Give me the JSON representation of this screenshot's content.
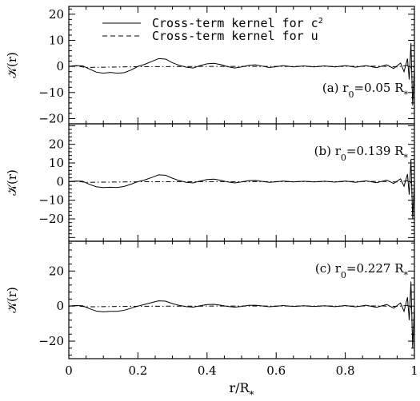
{
  "chart_data": [
    {
      "type": "line",
      "panel": "a",
      "annotation": "(a) r",
      "annotation_sub": "0",
      "annotation_rest": "=0.05 R",
      "annotation_star": "*",
      "ylabel": "𝒦(r)",
      "xlim": [
        0,
        1
      ],
      "ylim": [
        -22,
        23
      ],
      "yticks": [
        -20,
        -10,
        0,
        10,
        20
      ],
      "legend": [
        {
          "label": "Cross-term kernel for c",
          "sup": "2",
          "style": "solid"
        },
        {
          "label": "Cross-term kernel for u",
          "sup": "",
          "style": "dashed"
        }
      ],
      "legend_position": "top-left",
      "series": [
        {
          "style": "solid",
          "points": [
            [
              0.0,
              0
            ],
            [
              0.02,
              0.3
            ],
            [
              0.04,
              0.2
            ],
            [
              0.06,
              -1
            ],
            [
              0.08,
              -2.2
            ],
            [
              0.1,
              -2.6
            ],
            [
              0.12,
              -2.3
            ],
            [
              0.14,
              -2.6
            ],
            [
              0.16,
              -2.4
            ],
            [
              0.18,
              -1.4
            ],
            [
              0.2,
              0
            ],
            [
              0.22,
              0.8
            ],
            [
              0.24,
              1.9
            ],
            [
              0.26,
              3.0
            ],
            [
              0.28,
              2.8
            ],
            [
              0.3,
              1.4
            ],
            [
              0.32,
              0.4
            ],
            [
              0.34,
              -0.3
            ],
            [
              0.36,
              -0.6
            ],
            [
              0.38,
              0.3
            ],
            [
              0.4,
              1.0
            ],
            [
              0.42,
              1.2
            ],
            [
              0.44,
              0.7
            ],
            [
              0.46,
              -0.1
            ],
            [
              0.48,
              -0.6
            ],
            [
              0.5,
              -0.2
            ],
            [
              0.52,
              0.4
            ],
            [
              0.54,
              0.6
            ],
            [
              0.56,
              0.1
            ],
            [
              0.58,
              -0.4
            ],
            [
              0.6,
              -0.1
            ],
            [
              0.62,
              0.3
            ],
            [
              0.65,
              -0.2
            ],
            [
              0.68,
              0.2
            ],
            [
              0.71,
              -0.2
            ],
            [
              0.74,
              0.2
            ],
            [
              0.77,
              -0.2
            ],
            [
              0.8,
              0.3
            ],
            [
              0.83,
              -0.3
            ],
            [
              0.86,
              0.3
            ],
            [
              0.89,
              -0.5
            ],
            [
              0.92,
              0.6
            ],
            [
              0.94,
              -0.8
            ],
            [
              0.96,
              1.3
            ],
            [
              0.97,
              -2
            ],
            [
              0.98,
              3
            ],
            [
              0.985,
              -5
            ],
            [
              0.99,
              9
            ],
            [
              0.995,
              -15
            ],
            [
              1.0,
              0
            ]
          ]
        },
        {
          "style": "dashed",
          "points": [
            [
              0.0,
              0
            ],
            [
              0.02,
              0.2
            ],
            [
              0.05,
              -0.4
            ],
            [
              0.1,
              -0.3
            ],
            [
              0.2,
              -0.1
            ],
            [
              0.4,
              0
            ],
            [
              0.6,
              0
            ],
            [
              0.8,
              0
            ],
            [
              0.9,
              0.1
            ],
            [
              0.95,
              -0.2
            ],
            [
              0.98,
              0.4
            ],
            [
              0.99,
              -0.6
            ],
            [
              1.0,
              0
            ]
          ]
        }
      ]
    },
    {
      "type": "line",
      "panel": "b",
      "annotation": "(b) r",
      "annotation_sub": "0",
      "annotation_rest": "=0.139 R",
      "annotation_star": "*",
      "ylabel": "𝒦(r)",
      "xlim": [
        0,
        1
      ],
      "ylim": [
        -32,
        31
      ],
      "yticks": [
        -20,
        -10,
        0,
        10,
        20
      ],
      "series": [
        {
          "style": "solid",
          "points": [
            [
              0.0,
              0
            ],
            [
              0.02,
              0.3
            ],
            [
              0.04,
              0.2
            ],
            [
              0.06,
              -1.5
            ],
            [
              0.08,
              -2.8
            ],
            [
              0.1,
              -3.2
            ],
            [
              0.12,
              -3.0
            ],
            [
              0.14,
              -3.2
            ],
            [
              0.16,
              -2.6
            ],
            [
              0.18,
              -1.4
            ],
            [
              0.2,
              0
            ],
            [
              0.22,
              0.9
            ],
            [
              0.24,
              2.2
            ],
            [
              0.26,
              3.6
            ],
            [
              0.28,
              3.4
            ],
            [
              0.3,
              1.8
            ],
            [
              0.32,
              0.5
            ],
            [
              0.34,
              -0.4
            ],
            [
              0.36,
              -0.7
            ],
            [
              0.38,
              0.3
            ],
            [
              0.4,
              1.1
            ],
            [
              0.42,
              1.3
            ],
            [
              0.44,
              0.7
            ],
            [
              0.46,
              -0.2
            ],
            [
              0.48,
              -0.7
            ],
            [
              0.5,
              -0.2
            ],
            [
              0.52,
              0.5
            ],
            [
              0.54,
              0.6
            ],
            [
              0.56,
              0.1
            ],
            [
              0.58,
              -0.4
            ],
            [
              0.6,
              -0.1
            ],
            [
              0.62,
              0.3
            ],
            [
              0.65,
              -0.2
            ],
            [
              0.68,
              0.2
            ],
            [
              0.71,
              -0.2
            ],
            [
              0.74,
              0.2
            ],
            [
              0.77,
              -0.3
            ],
            [
              0.8,
              0.3
            ],
            [
              0.83,
              -0.4
            ],
            [
              0.86,
              0.4
            ],
            [
              0.89,
              -0.6
            ],
            [
              0.92,
              0.8
            ],
            [
              0.94,
              -1
            ],
            [
              0.96,
              1.5
            ],
            [
              0.97,
              -2.5
            ],
            [
              0.98,
              4
            ],
            [
              0.985,
              -7
            ],
            [
              0.99,
              12
            ],
            [
              0.995,
              -20
            ],
            [
              1.0,
              0
            ]
          ]
        },
        {
          "style": "dashed",
          "points": [
            [
              0.0,
              0
            ],
            [
              0.02,
              0.2
            ],
            [
              0.05,
              -0.4
            ],
            [
              0.1,
              -0.3
            ],
            [
              0.2,
              -0.1
            ],
            [
              0.4,
              0
            ],
            [
              0.6,
              0
            ],
            [
              0.8,
              0
            ],
            [
              0.9,
              0.1
            ],
            [
              0.95,
              -0.2
            ],
            [
              0.98,
              0.4
            ],
            [
              0.99,
              -0.6
            ],
            [
              1.0,
              0
            ]
          ]
        }
      ]
    },
    {
      "type": "line",
      "panel": "c",
      "annotation": "(c) r",
      "annotation_sub": "0",
      "annotation_rest": "=0.227 R",
      "annotation_star": "*",
      "ylabel": "𝒦(r)",
      "xlabel": "r/R",
      "xlabel_star": "*",
      "xlim": [
        0,
        1
      ],
      "xticks": [
        0,
        0.2,
        0.4,
        0.6,
        0.8,
        1
      ],
      "xticklabels": [
        "0",
        "0.2",
        "0.4",
        "0.6",
        "0.8",
        "1"
      ],
      "ylim": [
        -30,
        37
      ],
      "yticks": [
        -20,
        0,
        20
      ],
      "series": [
        {
          "style": "solid",
          "points": [
            [
              0.0,
              0
            ],
            [
              0.02,
              0.3
            ],
            [
              0.04,
              0.2
            ],
            [
              0.06,
              -1.5
            ],
            [
              0.08,
              -2.9
            ],
            [
              0.1,
              -3.3
            ],
            [
              0.12,
              -3.0
            ],
            [
              0.14,
              -3.0
            ],
            [
              0.16,
              -2.4
            ],
            [
              0.18,
              -1.2
            ],
            [
              0.2,
              0
            ],
            [
              0.22,
              1.0
            ],
            [
              0.24,
              2.0
            ],
            [
              0.26,
              3.0
            ],
            [
              0.28,
              2.8
            ],
            [
              0.3,
              1.4
            ],
            [
              0.32,
              0.4
            ],
            [
              0.34,
              -0.3
            ],
            [
              0.36,
              -0.6
            ],
            [
              0.38,
              0.2
            ],
            [
              0.4,
              0.9
            ],
            [
              0.42,
              1.0
            ],
            [
              0.44,
              0.5
            ],
            [
              0.46,
              -0.2
            ],
            [
              0.48,
              -0.6
            ],
            [
              0.5,
              -0.2
            ],
            [
              0.52,
              0.4
            ],
            [
              0.54,
              0.5
            ],
            [
              0.56,
              0.1
            ],
            [
              0.58,
              -0.4
            ],
            [
              0.6,
              -0.1
            ],
            [
              0.62,
              0.3
            ],
            [
              0.65,
              -0.2
            ],
            [
              0.68,
              0.2
            ],
            [
              0.71,
              -0.2
            ],
            [
              0.74,
              0.2
            ],
            [
              0.77,
              -0.3
            ],
            [
              0.8,
              0.3
            ],
            [
              0.83,
              -0.4
            ],
            [
              0.86,
              0.5
            ],
            [
              0.89,
              -0.7
            ],
            [
              0.92,
              0.9
            ],
            [
              0.94,
              -1.2
            ],
            [
              0.96,
              1.8
            ],
            [
              0.97,
              -3
            ],
            [
              0.98,
              5
            ],
            [
              0.985,
              -8
            ],
            [
              0.99,
              14
            ],
            [
              0.995,
              -24
            ],
            [
              1.0,
              0
            ]
          ]
        },
        {
          "style": "dashed",
          "points": [
            [
              0.0,
              0
            ],
            [
              0.02,
              0.2
            ],
            [
              0.05,
              -0.4
            ],
            [
              0.1,
              -0.3
            ],
            [
              0.2,
              -0.1
            ],
            [
              0.4,
              0
            ],
            [
              0.6,
              0
            ],
            [
              0.8,
              0
            ],
            [
              0.9,
              0.1
            ],
            [
              0.95,
              -0.2
            ],
            [
              0.98,
              0.4
            ],
            [
              0.99,
              -0.6
            ],
            [
              1.0,
              0
            ]
          ]
        }
      ]
    }
  ]
}
